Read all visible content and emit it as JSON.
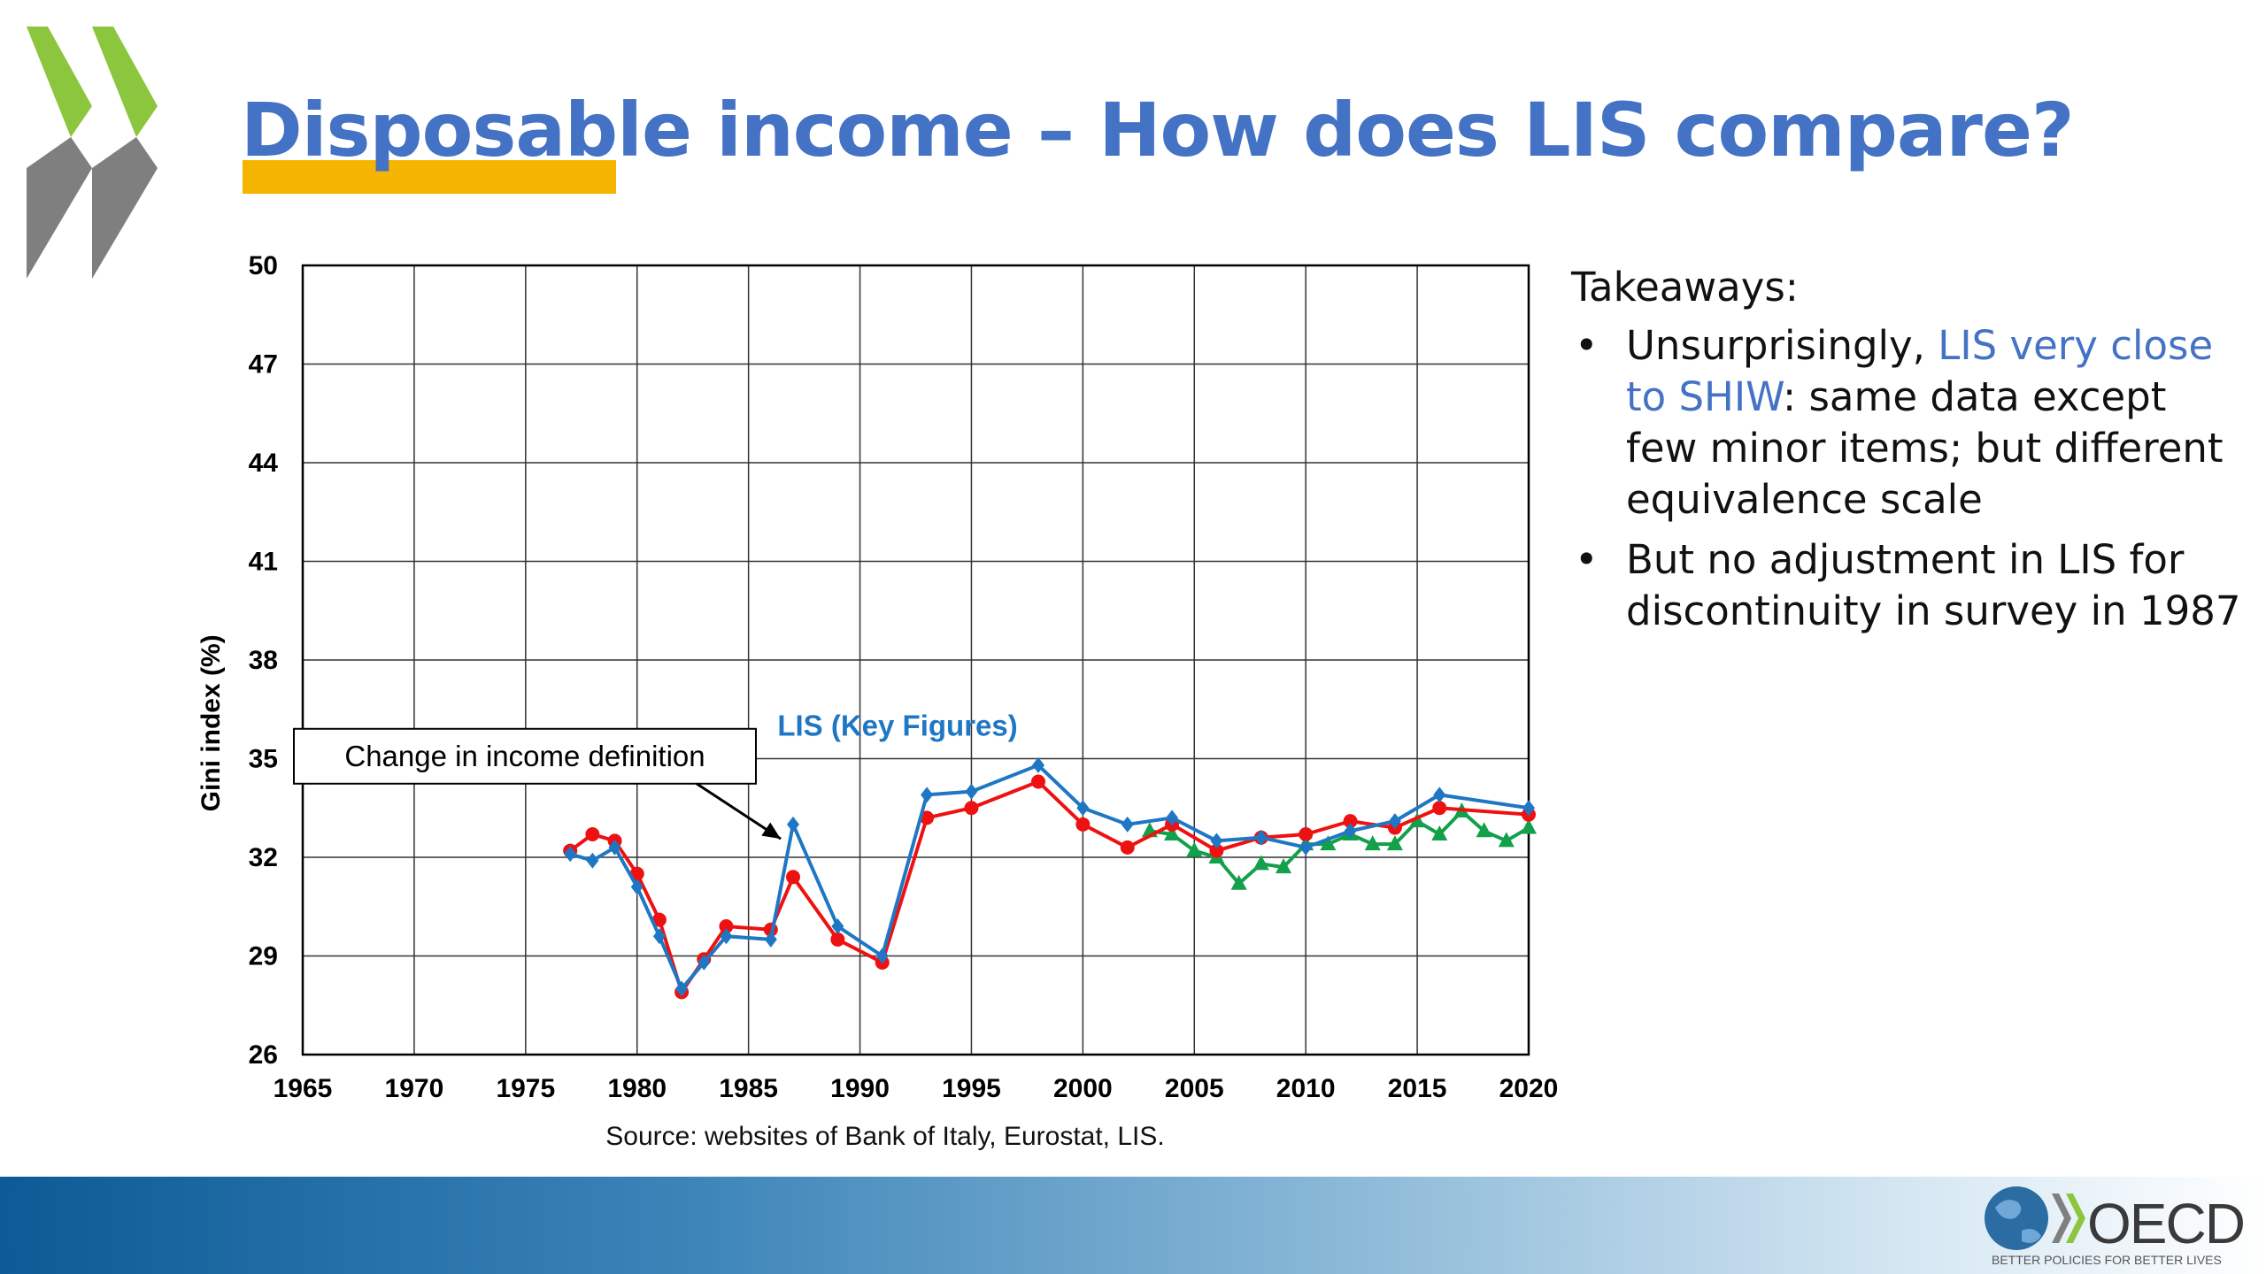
{
  "slide": {
    "title": "Disposable income – How does LIS compare?",
    "source": "Source: websites of Bank of Italy, Eurostat, LIS.",
    "takeaways": {
      "heading": "Takeaways:",
      "bullet1_before": "Unsurprisingly, ",
      "bullet1_highlight": "LIS very close to SHIW",
      "bullet1_after": ": same data except few minor items; but different equivalence scale",
      "bullet2": "But no adjustment in LIS for discontinuity in survey in 1987"
    },
    "logo": {
      "text": "OECD",
      "tagline": "BETTER POLICIES FOR BETTER LIVES"
    }
  },
  "colors": {
    "title": "#4472c4",
    "underline": "#f4b400",
    "lis": "#1f77c4",
    "red": "#ee1111",
    "green": "#12a04a",
    "chevron_green": "#8cc63f",
    "chevron_gray": "#7f7f7f"
  },
  "chart_data": {
    "type": "line",
    "ylabel": "Gini index (%)",
    "xlabel": "",
    "xlim": [
      1965,
      2020
    ],
    "ylim": [
      26,
      50
    ],
    "xticks": [
      1965,
      1970,
      1975,
      1980,
      1985,
      1990,
      1995,
      2000,
      2005,
      2010,
      2015,
      2020
    ],
    "yticks": [
      26,
      29,
      32,
      35,
      38,
      41,
      44,
      47,
      50
    ],
    "grid": true,
    "annotation": {
      "text": "Change in income definition",
      "arrow_to": [
        1987,
        32.4
      ]
    },
    "series": [
      {
        "name": "LIS (Key Figures)",
        "color": "#1f77c4",
        "marker": "diamond",
        "points": [
          [
            1977,
            32.1
          ],
          [
            1978,
            31.9
          ],
          [
            1979,
            32.3
          ],
          [
            1980,
            31.1
          ],
          [
            1981,
            29.6
          ],
          [
            1982,
            28.0
          ],
          [
            1983,
            28.8
          ],
          [
            1984,
            29.6
          ],
          [
            1986,
            29.5
          ],
          [
            1987,
            33.0
          ],
          [
            1989,
            29.9
          ],
          [
            1991,
            29.0
          ],
          [
            1993,
            33.9
          ],
          [
            1995,
            34.0
          ],
          [
            1998,
            34.8
          ],
          [
            2000,
            33.5
          ],
          [
            2002,
            33.0
          ],
          [
            2004,
            33.2
          ],
          [
            2006,
            32.5
          ],
          [
            2008,
            32.6
          ],
          [
            2010,
            32.3
          ],
          [
            2012,
            32.8
          ],
          [
            2014,
            33.1
          ],
          [
            2016,
            33.9
          ],
          [
            2020,
            33.5
          ]
        ]
      },
      {
        "name": "",
        "color": "#ee1111",
        "marker": "circle",
        "points": [
          [
            1977,
            32.2
          ],
          [
            1978,
            32.7
          ],
          [
            1979,
            32.5
          ],
          [
            1980,
            31.5
          ],
          [
            1981,
            30.1
          ],
          [
            1982,
            27.9
          ],
          [
            1983,
            28.9
          ],
          [
            1984,
            29.9
          ],
          [
            1986,
            29.8
          ],
          [
            1987,
            31.4
          ],
          [
            1989,
            29.5
          ],
          [
            1991,
            28.8
          ],
          [
            1993,
            33.2
          ],
          [
            1995,
            33.5
          ],
          [
            1998,
            34.3
          ],
          [
            2000,
            33.0
          ],
          [
            2002,
            32.3
          ],
          [
            2004,
            33.0
          ],
          [
            2006,
            32.2
          ],
          [
            2008,
            32.6
          ],
          [
            2010,
            32.7
          ],
          [
            2012,
            33.1
          ],
          [
            2014,
            32.9
          ],
          [
            2016,
            33.5
          ],
          [
            2020,
            33.3
          ]
        ]
      },
      {
        "name": "",
        "color": "#12a04a",
        "marker": "triangle",
        "points": [
          [
            2003,
            32.8
          ],
          [
            2004,
            32.7
          ],
          [
            2005,
            32.2
          ],
          [
            2006,
            32.0
          ],
          [
            2007,
            31.2
          ],
          [
            2008,
            31.8
          ],
          [
            2009,
            31.7
          ],
          [
            2010,
            32.4
          ],
          [
            2011,
            32.4
          ],
          [
            2012,
            32.7
          ],
          [
            2013,
            32.4
          ],
          [
            2014,
            32.4
          ],
          [
            2015,
            33.1
          ],
          [
            2016,
            32.7
          ],
          [
            2017,
            33.4
          ],
          [
            2018,
            32.8
          ],
          [
            2019,
            32.5
          ],
          [
            2020,
            32.9
          ]
        ]
      }
    ]
  }
}
